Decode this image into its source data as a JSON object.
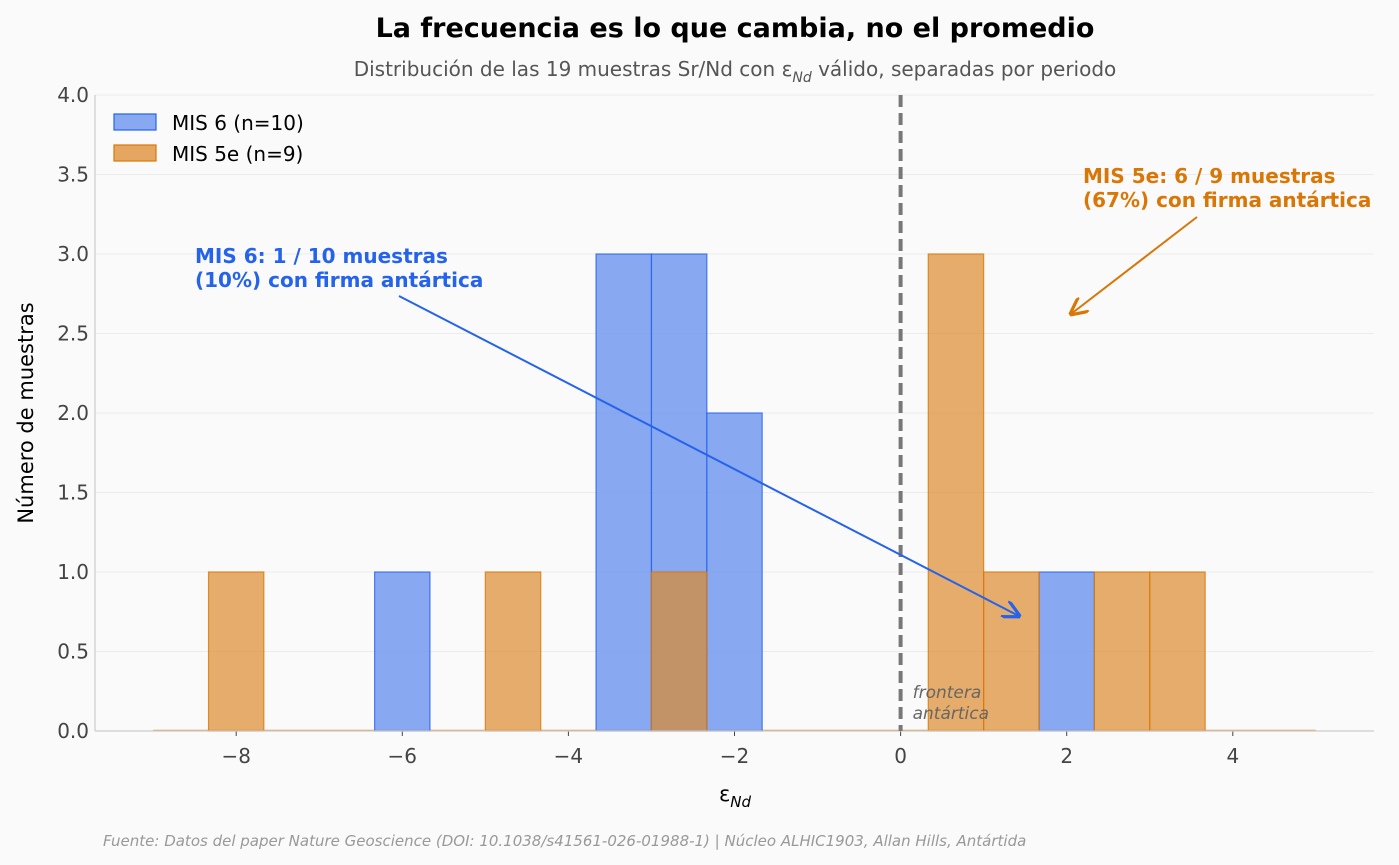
{
  "chart_data": {
    "type": "bar",
    "title": "La frecuencia es lo que cambia, no el promedio",
    "subtitle_main": "Distribución de las 19 muestras Sr/Nd con ε",
    "subtitle_sub": "Nd",
    "subtitle_rest": " válido, separadas por periodo",
    "xlabel_main": "ε",
    "xlabel_sub": "Nd",
    "ylabel": "Número de muestras",
    "xlim": [
      -9.7,
      5.7
    ],
    "ylim": [
      0,
      4
    ],
    "x_ticks": [
      -8,
      -6,
      -4,
      -2,
      0,
      2,
      4
    ],
    "x_tick_labels": [
      "−8",
      "−6",
      "−4",
      "−2",
      "0",
      "2",
      "4"
    ],
    "y_ticks": [
      0,
      0.5,
      1,
      1.5,
      2,
      2.5,
      3,
      3.5,
      4
    ],
    "y_tick_labels": [
      "0.0",
      "0.5",
      "1.0",
      "1.5",
      "2.0",
      "2.5",
      "3.0",
      "3.5",
      "4.0"
    ],
    "grid": true,
    "legend_position": "top-left",
    "bin_start": -9,
    "bin_end": 5,
    "series": [
      {
        "name": "MIS 6 (n=10)",
        "color": "#6b93f0",
        "edge": "#2563eb",
        "bins": [
          {
            "x0": -6.333,
            "x1": -5.667,
            "count": 1
          },
          {
            "x0": -3.667,
            "x1": -3.0,
            "count": 3
          },
          {
            "x0": -3.0,
            "x1": -2.333,
            "count": 3
          },
          {
            "x0": -2.333,
            "x1": -1.667,
            "count": 2
          },
          {
            "x0": 1.667,
            "x1": 2.333,
            "count": 1
          }
        ]
      },
      {
        "name": "MIS 5e (n=9)",
        "color": "#dd8a2e",
        "edge": "#d97706",
        "bins": [
          {
            "x0": -8.333,
            "x1": -7.667,
            "count": 1
          },
          {
            "x0": -5.0,
            "x1": -4.333,
            "count": 1
          },
          {
            "x0": -3.0,
            "x1": -2.333,
            "count": 1
          },
          {
            "x0": 0.333,
            "x1": 1.0,
            "count": 3
          },
          {
            "x0": 1.0,
            "x1": 1.667,
            "count": 1
          },
          {
            "x0": 2.333,
            "x1": 3.0,
            "count": 1
          },
          {
            "x0": 3.0,
            "x1": 3.667,
            "count": 1
          }
        ]
      }
    ],
    "boundary_x": 0,
    "annotations": {
      "boundary_line1": "frontera",
      "boundary_line2": "antártica",
      "mis6_line1": "MIS 6: 1 / 10 muestras",
      "mis6_line2": "(10%) con firma antártica",
      "mis5e_line1": "MIS 5e: 6 / 9 muestras",
      "mis5e_line2": "(67%) con firma antártica"
    },
    "source": "Fuente: Datos del paper Nature Geoscience (DOI: 10.1038/s41561-026-01988-1) | Núcleo ALHIC1903, Allan Hills, Antártida"
  }
}
